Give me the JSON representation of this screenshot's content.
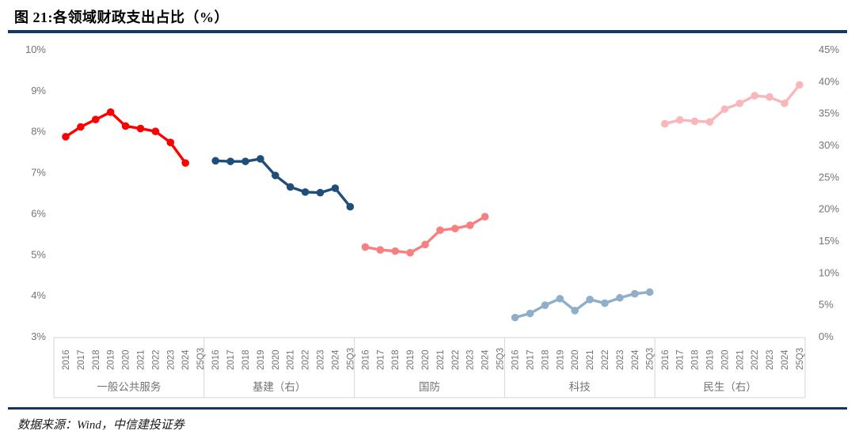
{
  "header": {
    "title": "图 21:各领域财政支出占比（%）"
  },
  "footer": {
    "source": "数据来源：Wind，中信建投证券"
  },
  "colors": {
    "divider": "#17375E",
    "axis_text": "#737373",
    "cell_border": "#D6D6D6",
    "plot_bg": "#FFFFFF"
  },
  "chart_data": {
    "type": "line",
    "title": "图 21:各领域财政支出占比（%）",
    "grid": false,
    "legend_position": "none",
    "categories": [
      "2016",
      "2017",
      "2018",
      "2019",
      "2020",
      "2021",
      "2022",
      "2023",
      "2024",
      "25Q3"
    ],
    "left_axis": {
      "labels": [
        "10%",
        "9%",
        "8%",
        "7%",
        "6%",
        "5%",
        "4%",
        "3%"
      ],
      "values": [
        10,
        9,
        8,
        7,
        6,
        5,
        4,
        3
      ],
      "min": 3,
      "max": 10
    },
    "right_axis": {
      "labels": [
        "45%",
        "40%",
        "35%",
        "30%",
        "25%",
        "20%",
        "15%",
        "10%",
        "5%",
        "0%"
      ],
      "values": [
        45,
        40,
        35,
        30,
        25,
        20,
        15,
        10,
        5,
        0
      ],
      "min": 0,
      "max": 45
    },
    "groups": [
      {
        "label": "一般公共服务",
        "axis": "left",
        "color": "#FF0000",
        "values": [
          7.88,
          8.12,
          8.3,
          8.48,
          8.14,
          8.08,
          8.01,
          7.74,
          7.24
        ]
      },
      {
        "label": "基建（右）",
        "axis": "right",
        "color": "#1F4E79",
        "values": [
          27.6,
          27.5,
          27.5,
          27.9,
          25.3,
          23.5,
          22.7,
          22.6,
          23.3,
          20.4
        ]
      },
      {
        "label": "国防",
        "axis": "left",
        "color": "#F87F7F",
        "values": [
          5.19,
          5.12,
          5.09,
          5.05,
          5.25,
          5.6,
          5.64,
          5.72,
          5.93
        ]
      },
      {
        "label": "科技",
        "axis": "left",
        "color": "#8FAEC8",
        "values": [
          3.47,
          3.57,
          3.77,
          3.93,
          3.64,
          3.91,
          3.82,
          3.95,
          4.05,
          4.09
        ]
      },
      {
        "label": "民生（右）",
        "axis": "right",
        "color": "#F9B6BB",
        "values": [
          33.4,
          34.0,
          33.8,
          33.7,
          35.7,
          36.6,
          37.8,
          37.6,
          36.6,
          39.5
        ]
      }
    ]
  }
}
